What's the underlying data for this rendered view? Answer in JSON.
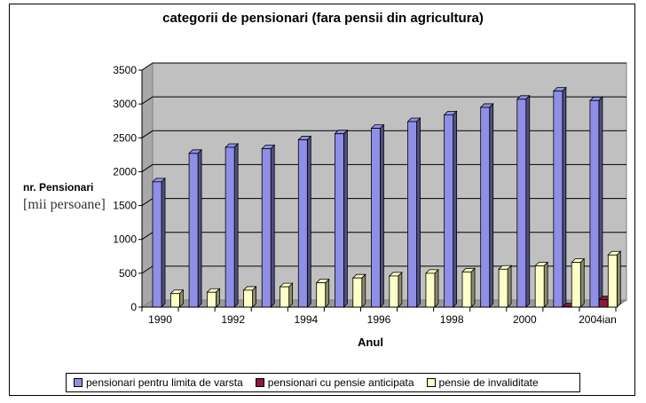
{
  "chart_data": {
    "type": "bar",
    "title": "categorii de pensionari (fara pensii din agricultura)",
    "ylabel": "nr. Pensionari",
    "ylabel_unit": "[mii persoane]",
    "xlabel": "Anul",
    "ylim": [
      0,
      3500
    ],
    "yticks": [
      0,
      500,
      1000,
      1500,
      2000,
      2500,
      3000,
      3500
    ],
    "grid": true,
    "legend_position": "bottom",
    "categories": [
      "1990",
      "1991",
      "1992",
      "1993",
      "1994",
      "1995",
      "1996",
      "1997",
      "1998",
      "1999",
      "2000",
      "2001",
      "2004ian"
    ],
    "xtick_labels": [
      "1990",
      "",
      "1992",
      "",
      "1994",
      "",
      "1996",
      "",
      "1998",
      "",
      "2000",
      "",
      "2004ian"
    ],
    "series": [
      {
        "name": "pensionari pentru limita de varsta",
        "color": "#8f8fe8",
        "values": [
          1850,
          2270,
          2360,
          2340,
          2470,
          2560,
          2640,
          2740,
          2840,
          2950,
          3070,
          3190,
          3050
        ]
      },
      {
        "name": "pensionari cu pensie anticipata",
        "color": "#8b1a3a",
        "values": [
          0,
          0,
          0,
          0,
          0,
          0,
          0,
          0,
          0,
          0,
          0,
          5,
          110
        ]
      },
      {
        "name": "pensie de invaliditate",
        "color": "#ffffc8",
        "values": [
          200,
          220,
          250,
          300,
          360,
          430,
          460,
          500,
          520,
          560,
          610,
          660,
          770
        ]
      }
    ]
  }
}
